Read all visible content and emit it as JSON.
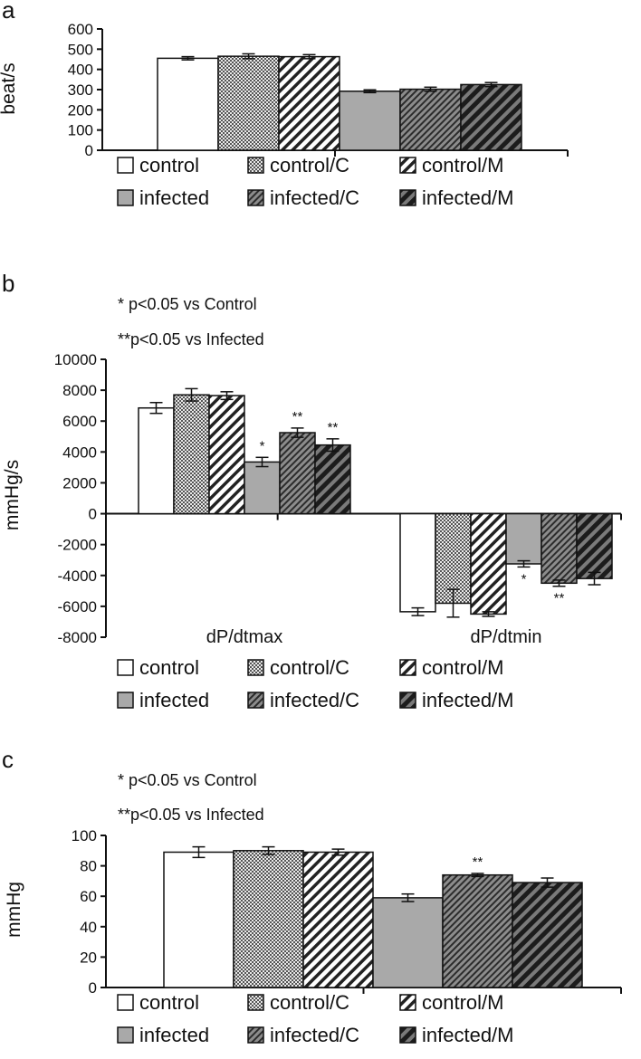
{
  "legend_items": [
    "control",
    "control/C",
    "control/M",
    "infected",
    "infected/C",
    "infected/M"
  ],
  "chart_data": [
    {
      "panel": "a",
      "type": "bar",
      "ylabel": "beat/s",
      "ylim": [
        0,
        600
      ],
      "yticks": [
        "600",
        "500",
        "400",
        "300",
        "200",
        "100",
        "0"
      ],
      "categories": [
        ""
      ],
      "series": [
        {
          "name": "control",
          "values": [
            455
          ],
          "errors": [
            8
          ]
        },
        {
          "name": "control/C",
          "values": [
            465
          ],
          "errors": [
            12
          ]
        },
        {
          "name": "control/M",
          "values": [
            463
          ],
          "errors": [
            10
          ]
        },
        {
          "name": "infected",
          "values": [
            292
          ],
          "errors": [
            7
          ]
        },
        {
          "name": "infected/C",
          "values": [
            302
          ],
          "errors": [
            10
          ]
        },
        {
          "name": "infected/M",
          "values": [
            325
          ],
          "errors": [
            10
          ]
        }
      ]
    },
    {
      "panel": "b",
      "type": "bar",
      "ylabel": "mmHg/s",
      "ylim": [
        -8000,
        10000
      ],
      "yticks": [
        "10000",
        "8000",
        "6000",
        "4000",
        "2000",
        "0",
        "-2000",
        "-4000",
        "-6000",
        "-8000"
      ],
      "annotations": [
        "* p<0.05 vs Control",
        "**p<0.05 vs Infected"
      ],
      "categories": [
        "dP/dtmax",
        "dP/dtmin"
      ],
      "series": [
        {
          "name": "control",
          "values": [
            6850,
            -6350
          ],
          "errors": [
            350,
            250
          ],
          "marks": [
            "",
            ""
          ]
        },
        {
          "name": "control/C",
          "values": [
            7700,
            -5800
          ],
          "errors": [
            400,
            900
          ],
          "marks": [
            "",
            ""
          ]
        },
        {
          "name": "control/M",
          "values": [
            7650,
            -6500
          ],
          "errors": [
            250,
            150
          ],
          "marks": [
            "",
            ""
          ]
        },
        {
          "name": "infected",
          "values": [
            3350,
            -3250
          ],
          "errors": [
            300,
            200
          ],
          "marks": [
            "*",
            "*"
          ]
        },
        {
          "name": "infected/C",
          "values": [
            5250,
            -4500
          ],
          "errors": [
            300,
            200
          ],
          "marks": [
            "**",
            "**"
          ]
        },
        {
          "name": "infected/M",
          "values": [
            4450,
            -4200
          ],
          "errors": [
            400,
            400
          ],
          "marks": [
            "**",
            ""
          ]
        }
      ]
    },
    {
      "panel": "c",
      "type": "bar",
      "ylabel": "mmHg",
      "ylim": [
        0,
        100
      ],
      "yticks": [
        "100",
        "80",
        "60",
        "40",
        "20",
        "0"
      ],
      "annotations": [
        "* p<0.05 vs Control",
        "**p<0.05 vs Infected"
      ],
      "categories": [
        ""
      ],
      "series": [
        {
          "name": "control",
          "values": [
            89
          ],
          "errors": [
            3.5
          ],
          "marks": [
            ""
          ]
        },
        {
          "name": "control/C",
          "values": [
            90
          ],
          "errors": [
            2.5
          ],
          "marks": [
            ""
          ]
        },
        {
          "name": "control/M",
          "values": [
            89
          ],
          "errors": [
            2
          ],
          "marks": [
            ""
          ]
        },
        {
          "name": "infected",
          "values": [
            59
          ],
          "errors": [
            2.5
          ],
          "marks": [
            ""
          ]
        },
        {
          "name": "infected/C",
          "values": [
            74
          ],
          "errors": [
            1
          ],
          "marks": [
            "**"
          ]
        },
        {
          "name": "infected/M",
          "values": [
            69
          ],
          "errors": [
            3
          ],
          "marks": [
            ""
          ]
        }
      ]
    }
  ]
}
